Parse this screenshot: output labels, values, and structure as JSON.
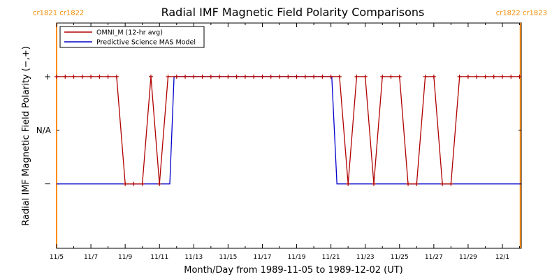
{
  "header": {
    "left_rotations": "cr1821 cr1822",
    "right_rotations": "cr1822 cr1823"
  },
  "colors": {
    "omni": "#b00000",
    "mas": "#0000cc",
    "rotation_marker": "#ff8c00",
    "rotation_text": "#f08c00"
  },
  "chart_data": {
    "type": "line",
    "title": "Radial IMF Magnetic Field Polarity Comparisons",
    "xlabel": "Month/Day from 1989-11-05 to 1989-12-02 (UT)",
    "ylabel": "Radial IMF Magnetic Field Polarity (−,+)",
    "xlim": [
      0,
      27.1
    ],
    "ylim": [
      -2.2,
      2.0
    ],
    "x_ticks": [
      {
        "x": 0,
        "label": "11/5"
      },
      {
        "x": 2,
        "label": "11/7"
      },
      {
        "x": 4,
        "label": "11/9"
      },
      {
        "x": 6,
        "label": "11/11"
      },
      {
        "x": 8,
        "label": "11/13"
      },
      {
        "x": 10,
        "label": "11/15"
      },
      {
        "x": 12,
        "label": "11/17"
      },
      {
        "x": 14,
        "label": "11/19"
      },
      {
        "x": 16,
        "label": "11/21"
      },
      {
        "x": 18,
        "label": "11/23"
      },
      {
        "x": 20,
        "label": "11/25"
      },
      {
        "x": 22,
        "label": "11/27"
      },
      {
        "x": 24,
        "label": "11/29"
      },
      {
        "x": 26,
        "label": "12/1"
      }
    ],
    "y_ticks": [
      {
        "y": 1,
        "label": "+"
      },
      {
        "y": 0,
        "label": "N/A"
      },
      {
        "y": -1,
        "label": "−"
      }
    ],
    "rotation_boundaries": [
      0,
      27.05
    ],
    "series": [
      {
        "name": "OMNI_M (12-hr avg)",
        "color": "#b00000",
        "marker": "+",
        "points": [
          [
            0,
            1
          ],
          [
            0.5,
            1
          ],
          [
            1,
            1
          ],
          [
            1.5,
            1
          ],
          [
            2,
            1
          ],
          [
            2.5,
            1
          ],
          [
            3,
            1
          ],
          [
            3.5,
            1
          ],
          [
            4,
            -1
          ],
          [
            4.5,
            -1
          ],
          [
            5,
            -1
          ],
          [
            5.5,
            1
          ],
          [
            6,
            -1
          ],
          [
            6.5,
            1
          ],
          [
            7,
            1
          ],
          [
            7.5,
            1
          ],
          [
            8,
            1
          ],
          [
            8.5,
            1
          ],
          [
            9,
            1
          ],
          [
            9.5,
            1
          ],
          [
            10,
            1
          ],
          [
            10.5,
            1
          ],
          [
            11,
            1
          ],
          [
            11.5,
            1
          ],
          [
            12,
            1
          ],
          [
            12.5,
            1
          ],
          [
            13,
            1
          ],
          [
            13.5,
            1
          ],
          [
            14,
            1
          ],
          [
            14.5,
            1
          ],
          [
            15,
            1
          ],
          [
            15.5,
            1
          ],
          [
            16,
            1
          ],
          [
            16.5,
            1
          ],
          [
            17,
            -1
          ],
          [
            17.5,
            1
          ],
          [
            18,
            1
          ],
          [
            18.5,
            -1
          ],
          [
            19,
            1
          ],
          [
            19.5,
            1
          ],
          [
            20,
            1
          ],
          [
            20.5,
            -1
          ],
          [
            21,
            -1
          ],
          [
            21.5,
            1
          ],
          [
            22,
            1
          ],
          [
            22.5,
            -1
          ],
          [
            23,
            -1
          ],
          [
            23.5,
            1
          ],
          [
            24,
            1
          ],
          [
            24.5,
            1
          ],
          [
            25,
            1
          ],
          [
            25.5,
            1
          ],
          [
            26,
            1
          ],
          [
            26.5,
            1
          ],
          [
            27,
            1
          ]
        ]
      },
      {
        "name": "Predictive Science MAS Model",
        "color": "#0000cc",
        "marker": "",
        "points": [
          [
            0,
            -1
          ],
          [
            6.6,
            -1
          ],
          [
            6.85,
            1
          ],
          [
            16.05,
            1
          ],
          [
            16.35,
            -1
          ],
          [
            27.05,
            -1
          ]
        ]
      }
    ]
  }
}
